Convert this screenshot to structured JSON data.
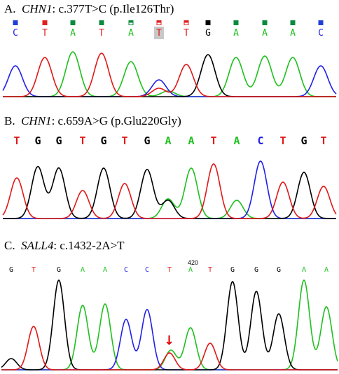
{
  "panels": [
    {
      "label": "A.",
      "gene": "CHN1",
      "mutation": ": c.377T>C (p.Ile126Thr)",
      "bases": [
        "C",
        "T",
        "A",
        "T",
        "A",
        "T",
        "T",
        "G",
        "A",
        "A",
        "A",
        "C"
      ],
      "quality_colors": [
        "#1f3fd6",
        "#e02020",
        "#0a8a3c",
        "#0a8a3c",
        "#0a8a3c",
        "#e02020",
        "#e02020",
        "#000000",
        "#0a8a3c",
        "#0a8a3c",
        "#0a8a3c",
        "#1f3fd6"
      ],
      "highlighted_index": 5
    },
    {
      "label": "B.",
      "gene": "CHN1",
      "mutation": ": c.659A>G (p.Glu220Gly)",
      "bases": [
        "T",
        "G",
        "G",
        "T",
        "G",
        "T",
        "G",
        "A",
        "A",
        "T",
        "A",
        "C",
        "T",
        "G",
        "T"
      ]
    },
    {
      "label": "C.",
      "gene": "SALL4",
      "mutation": ": c.1432-2A>T",
      "bases": [
        "G",
        "T",
        "G",
        "A",
        "A",
        "C",
        "C",
        "T",
        "A",
        "T",
        "G",
        "G",
        "G",
        "A",
        "A"
      ],
      "position_label": "420",
      "arrow_index": 8
    }
  ],
  "colors": {
    "A": "#1ec01e",
    "C": "#2020e6",
    "G": "#000000",
    "T": "#e01818"
  }
}
